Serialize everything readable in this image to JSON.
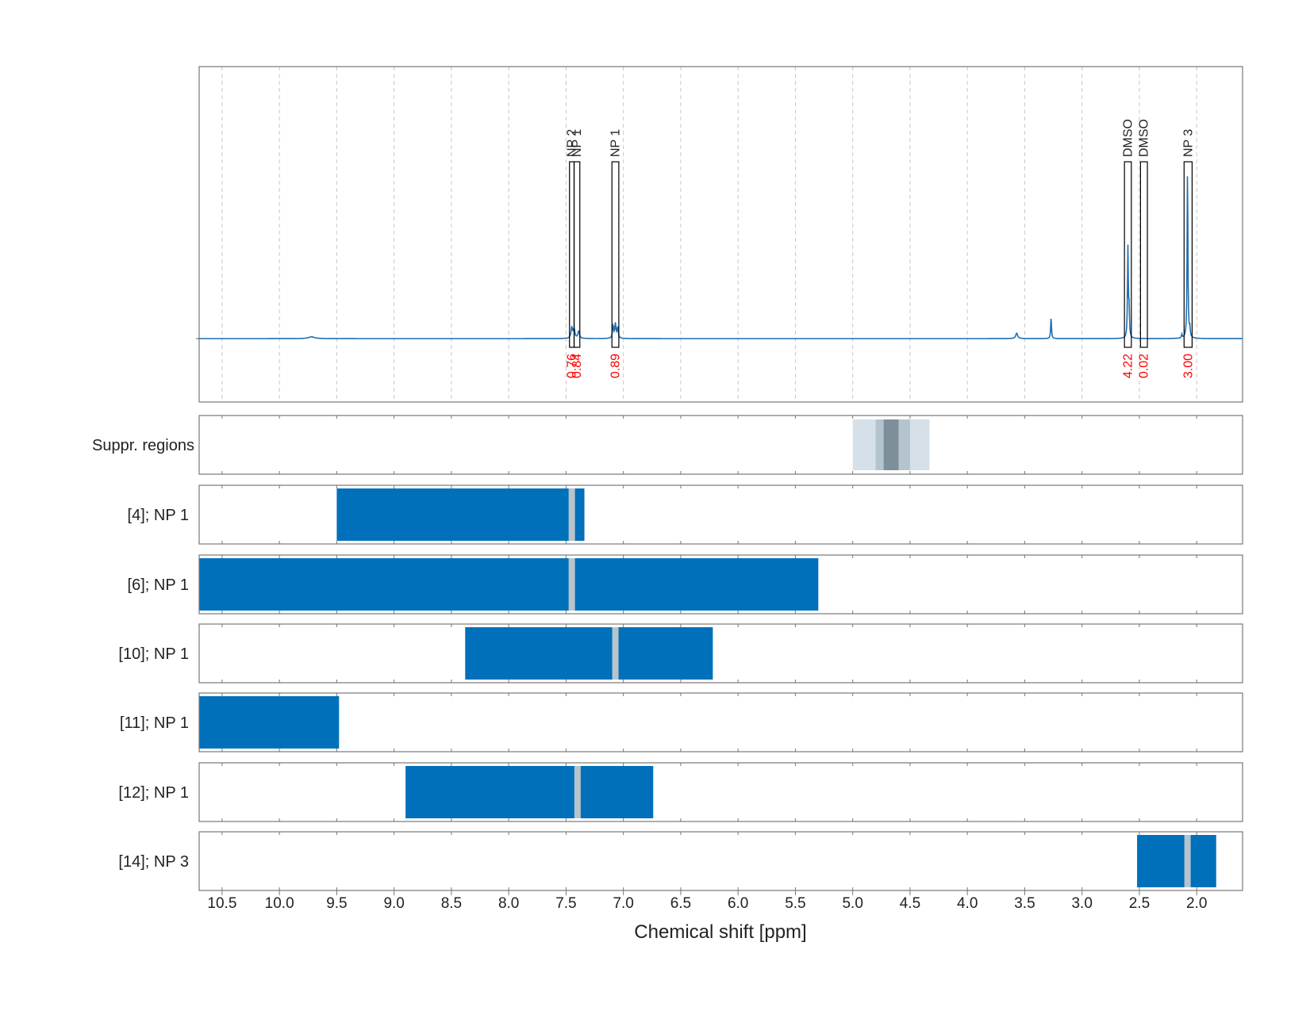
{
  "chart_data": {
    "type": "nmr-spectrum",
    "xlabel": "Chemical shift [ppm]",
    "xlim": [
      10.7,
      1.6
    ],
    "x_reversed": true,
    "xticks": [
      10.5,
      10.0,
      9.5,
      9.0,
      8.5,
      8.0,
      7.5,
      7.0,
      6.5,
      6.0,
      5.5,
      5.0,
      4.5,
      4.0,
      3.5,
      3.0,
      2.5,
      2.0
    ],
    "xtick_labels": [
      "10.5",
      "10.0",
      "9.5",
      "9.0",
      "8.5",
      "8.0",
      "7.5",
      "7.0",
      "6.5",
      "6.0",
      "5.5",
      "5.0",
      "4.5",
      "4.0",
      "3.5",
      "3.0",
      "2.5",
      "2.0"
    ],
    "grid": true,
    "colors": {
      "spectrum": "#1f6fb4",
      "range": "#0070ba",
      "range_center": "#b8c4cc",
      "integral_text": "#ff0000",
      "suppr_light": "#d6e0e8",
      "suppr_mid": "#b4c4cf",
      "suppr_dark": "#7d8f9a"
    },
    "spectrum": {
      "baseline": 0,
      "ymax": 1.0,
      "peaks": [
        {
          "ppm": 9.72,
          "height": 0.01,
          "width": 0.03
        },
        {
          "ppm": 7.45,
          "height": 0.06,
          "width": 0.008
        },
        {
          "ppm": 7.43,
          "height": 0.05,
          "width": 0.008
        },
        {
          "ppm": 7.39,
          "height": 0.04,
          "width": 0.008
        },
        {
          "ppm": 7.09,
          "height": 0.07,
          "width": 0.006
        },
        {
          "ppm": 7.07,
          "height": 0.08,
          "width": 0.006
        },
        {
          "ppm": 7.05,
          "height": 0.06,
          "width": 0.006
        },
        {
          "ppm": 3.57,
          "height": 0.03,
          "width": 0.01
        },
        {
          "ppm": 3.27,
          "height": 0.12,
          "width": 0.004
        },
        {
          "ppm": 2.6,
          "height": 0.5,
          "width": 0.004
        },
        {
          "ppm": 2.59,
          "height": 0.16,
          "width": 0.004
        },
        {
          "ppm": 2.13,
          "height": 0.02,
          "width": 0.004
        },
        {
          "ppm": 2.08,
          "height": 0.95,
          "width": 0.004
        },
        {
          "ppm": 2.06,
          "height": 0.05,
          "width": 0.004
        }
      ]
    },
    "annotations": [
      {
        "label": "NP 2",
        "ppm_left": 7.47,
        "ppm_right": 7.43,
        "integral": "0.76"
      },
      {
        "label": "NP 1",
        "ppm_left": 7.43,
        "ppm_right": 7.38,
        "integral": "0.84"
      },
      {
        "label": "NP 1",
        "ppm_left": 7.1,
        "ppm_right": 7.04,
        "integral": "0.89"
      },
      {
        "label": "DMSO",
        "ppm_left": 2.63,
        "ppm_right": 2.57,
        "integral": "4.22"
      },
      {
        "label": "DMSO",
        "ppm_left": 2.49,
        "ppm_right": 2.43,
        "integral": "0.02"
      },
      {
        "label": "NP 3",
        "ppm_left": 2.11,
        "ppm_right": 2.04,
        "integral": "3.00"
      }
    ],
    "suppression_label": "Suppr. regions",
    "suppression": [
      {
        "from": 5.0,
        "to": 4.33,
        "level": "light"
      },
      {
        "from": 4.8,
        "to": 4.5,
        "level": "mid"
      },
      {
        "from": 4.73,
        "to": 4.6,
        "level": "dark"
      }
    ],
    "ranges": [
      {
        "label": "[4]; NP 1",
        "from": 9.5,
        "to": 7.34,
        "center": 7.45
      },
      {
        "label": "[6]; NP 1",
        "from": 10.7,
        "to": 5.3,
        "center": 7.45
      },
      {
        "label": "[10]; NP 1",
        "from": 8.38,
        "to": 6.22,
        "center": 7.07
      },
      {
        "label": "[11]; NP 1",
        "from": 10.7,
        "to": 9.48,
        "center": null
      },
      {
        "label": "[12]; NP 1",
        "from": 8.9,
        "to": 6.74,
        "center": 7.4
      },
      {
        "label": "[14]; NP 3",
        "from": 2.52,
        "to": 1.83,
        "center": 2.08
      }
    ]
  }
}
